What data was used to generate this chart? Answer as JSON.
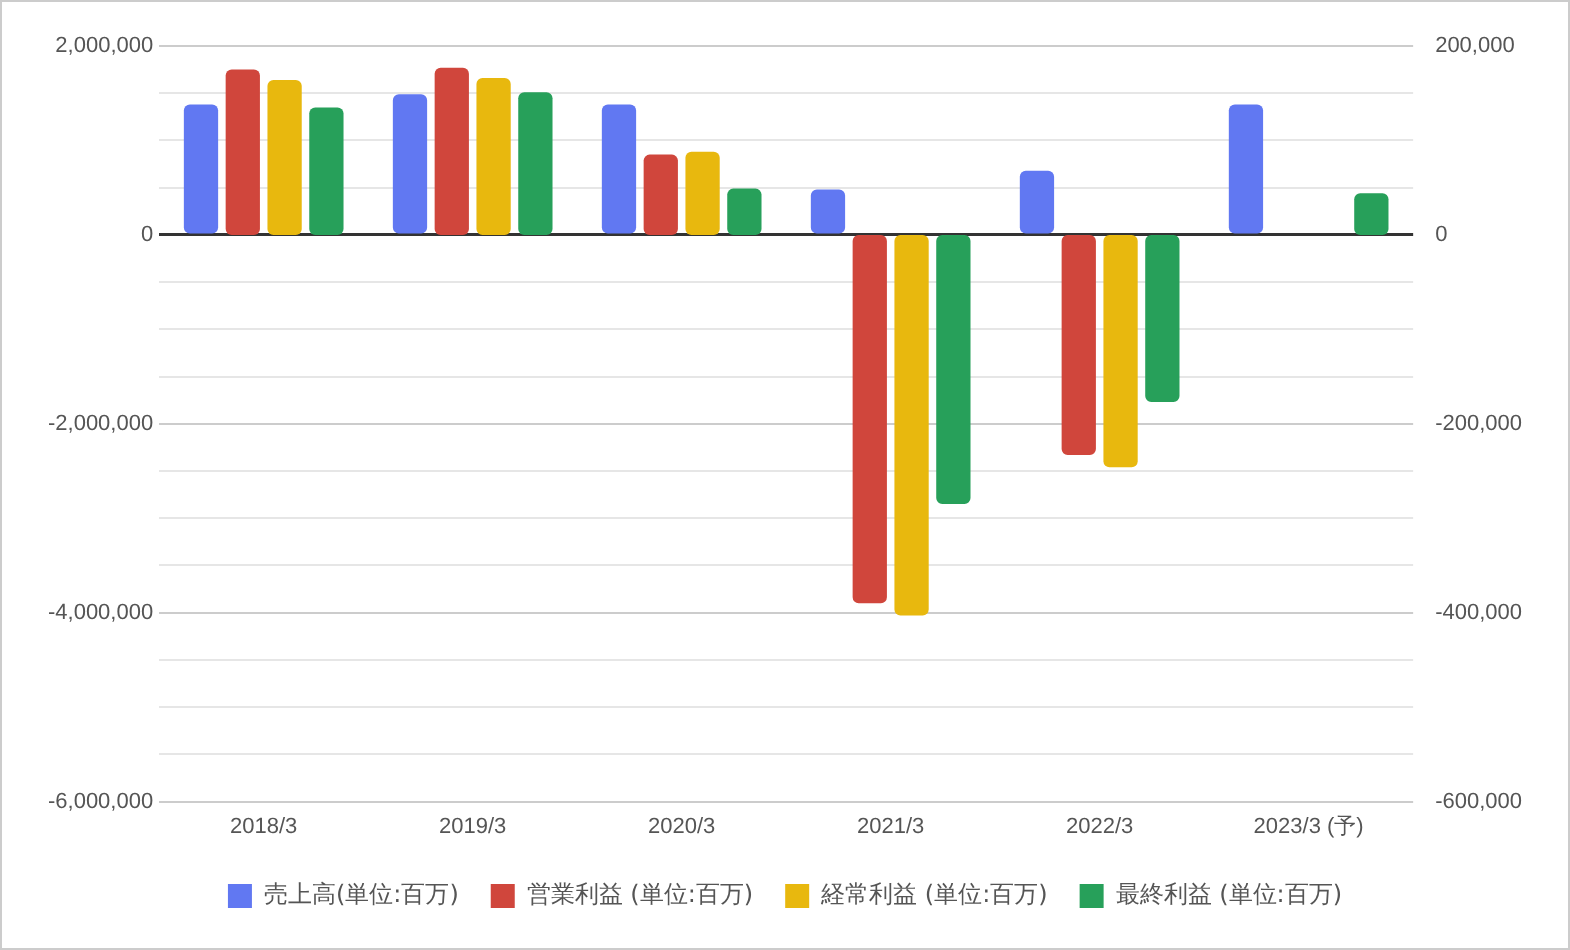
{
  "chart_data": {
    "type": "bar",
    "categories": [
      "2018/3",
      "2019/3",
      "2020/3",
      "2021/3",
      "2022/3",
      "2023/3 (予)"
    ],
    "series": [
      {
        "name": "売上高(単位:百万)",
        "color": "#6178f2",
        "values": [
          1380000,
          1490000,
          1380000,
          480000,
          680000,
          1380000
        ]
      },
      {
        "name": "営業利益 (単位:百万)",
        "color": "#d0463c",
        "axis": "y2",
        "values": [
          175000,
          177000,
          85000,
          -390000,
          -233000,
          null
        ]
      },
      {
        "name": "経常利益 (単位:百万)",
        "color": "#e8b80e",
        "axis": "y2",
        "values": [
          164000,
          166000,
          88000,
          -403000,
          -246000,
          null
        ]
      },
      {
        "name": "最終利益 (単位:百万)",
        "color": "#27a05a",
        "axis": "y2",
        "values": [
          135000,
          151000,
          49000,
          -285000,
          -177000,
          44000
        ]
      }
    ],
    "ylim": [
      -6000000,
      2000000
    ],
    "yticks": [
      {
        "value": -6000000,
        "label": "-6,000,000"
      },
      {
        "value": -5500000,
        "label": null
      },
      {
        "value": -5000000,
        "label": null
      },
      {
        "value": -4500000,
        "label": null
      },
      {
        "value": -4000000,
        "label": "-4,000,000"
      },
      {
        "value": -3500000,
        "label": null
      },
      {
        "value": -3000000,
        "label": null
      },
      {
        "value": -2500000,
        "label": null
      },
      {
        "value": -2000000,
        "label": "-2,000,000"
      },
      {
        "value": -1500000,
        "label": null
      },
      {
        "value": -1000000,
        "label": null
      },
      {
        "value": -500000,
        "label": null
      },
      0,
      {
        "value": 500000,
        "label": null
      },
      {
        "value": 1000000,
        "label": null
      },
      {
        "value": 1500000,
        "label": null
      },
      {
        "value": 2000000,
        "label": "2,000,000"
      }
    ],
    "y2lim": [
      -600000,
      200000
    ],
    "y2ticks": [
      {
        "value": -600000,
        "label": "-600,000"
      },
      {
        "value": -400000,
        "label": "-400,000"
      },
      {
        "value": -200000,
        "label": "-200,000"
      },
      0,
      {
        "value": 200000,
        "label": "200,000"
      }
    ],
    "grid": "y",
    "legend": "bottom"
  }
}
